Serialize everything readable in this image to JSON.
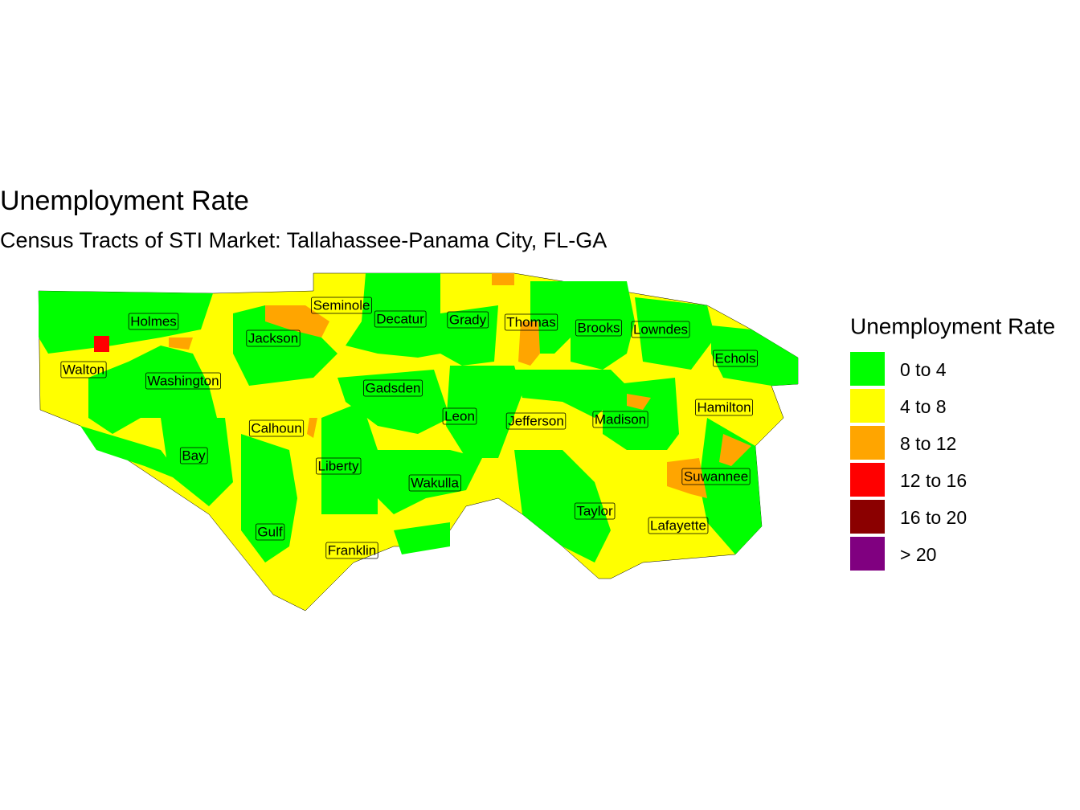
{
  "title": "Unemployment Rate",
  "subtitle": "Census Tracts of STI Market: Tallahassee-Panama City, FL-GA",
  "legend": {
    "title": "Unemployment Rate",
    "items": [
      {
        "label": "0 to 4",
        "color": "#00ff00"
      },
      {
        "label": "4 to 8",
        "color": "#ffff00"
      },
      {
        "label": "8 to 12",
        "color": "#ffa500"
      },
      {
        "label": "12 to 16",
        "color": "#ff0000"
      },
      {
        "label": "16 to 20",
        "color": "#8b0000"
      },
      {
        "label": "> 20",
        "color": "#800080"
      }
    ]
  },
  "counties": [
    {
      "name": "Seminole"
    },
    {
      "name": "Holmes"
    },
    {
      "name": "Decatur"
    },
    {
      "name": "Grady"
    },
    {
      "name": "Thomas"
    },
    {
      "name": "Brooks"
    },
    {
      "name": "Lowndes"
    },
    {
      "name": "Jackson"
    },
    {
      "name": "Echols"
    },
    {
      "name": "Walton"
    },
    {
      "name": "Washington"
    },
    {
      "name": "Gadsden"
    },
    {
      "name": "Hamilton"
    },
    {
      "name": "Leon"
    },
    {
      "name": "Jefferson"
    },
    {
      "name": "Madison"
    },
    {
      "name": "Calhoun"
    },
    {
      "name": "Bay"
    },
    {
      "name": "Liberty"
    },
    {
      "name": "Suwannee"
    },
    {
      "name": "Wakulla"
    },
    {
      "name": "Taylor"
    },
    {
      "name": "Lafayette"
    },
    {
      "name": "Gulf"
    },
    {
      "name": "Franklin"
    }
  ]
}
